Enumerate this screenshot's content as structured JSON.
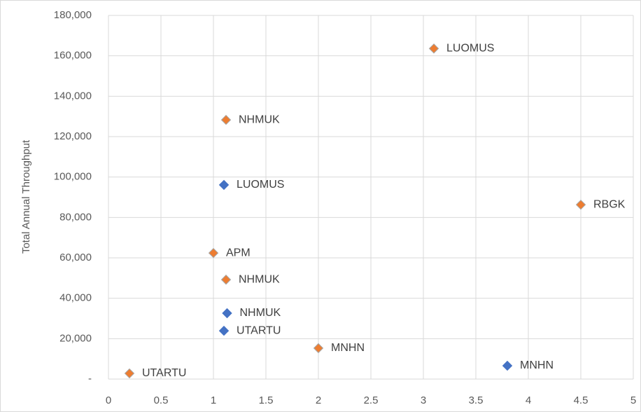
{
  "chart_data": {
    "type": "scatter",
    "y_label": "Total Annual Throughput",
    "xlim": [
      0,
      5
    ],
    "xticks": [
      0,
      0.5,
      1,
      1.5,
      2,
      2.5,
      3,
      3.5,
      4,
      4.5,
      5
    ],
    "ylim": [
      0,
      180000
    ],
    "yticks": [
      {
        "value": 0,
        "label": "-"
      },
      {
        "value": 20000,
        "label": "20,000"
      },
      {
        "value": 40000,
        "label": "40,000"
      },
      {
        "value": 60000,
        "label": "60,000"
      },
      {
        "value": 80000,
        "label": "80,000"
      },
      {
        "value": 100000,
        "label": "100,000"
      },
      {
        "value": 120000,
        "label": "120,000"
      },
      {
        "value": 140000,
        "label": "140,000"
      },
      {
        "value": 160000,
        "label": "160,000"
      },
      {
        "value": 180000,
        "label": "180,000"
      }
    ],
    "grid": true,
    "series": [
      {
        "color": "#ed7d31",
        "x": [
          3.1,
          1.12,
          4.5,
          1.0,
          1.12,
          2.0,
          0.2
        ],
        "values": [
          163600,
          128300,
          86300,
          62400,
          49200,
          15300,
          2800
        ],
        "labels": [
          "LUOMUS",
          "NHMUK",
          "RBGK",
          "APM",
          "NHMUK",
          "MNHN",
          "UTARTU"
        ]
      },
      {
        "color": "#4472c4",
        "x": [
          1.1,
          1.13,
          1.1,
          3.8
        ],
        "values": [
          96100,
          32600,
          23900,
          6600
        ],
        "labels": [
          "LUOMUS",
          "NHMUK",
          "UTARTU",
          "MNHN"
        ]
      }
    ]
  }
}
